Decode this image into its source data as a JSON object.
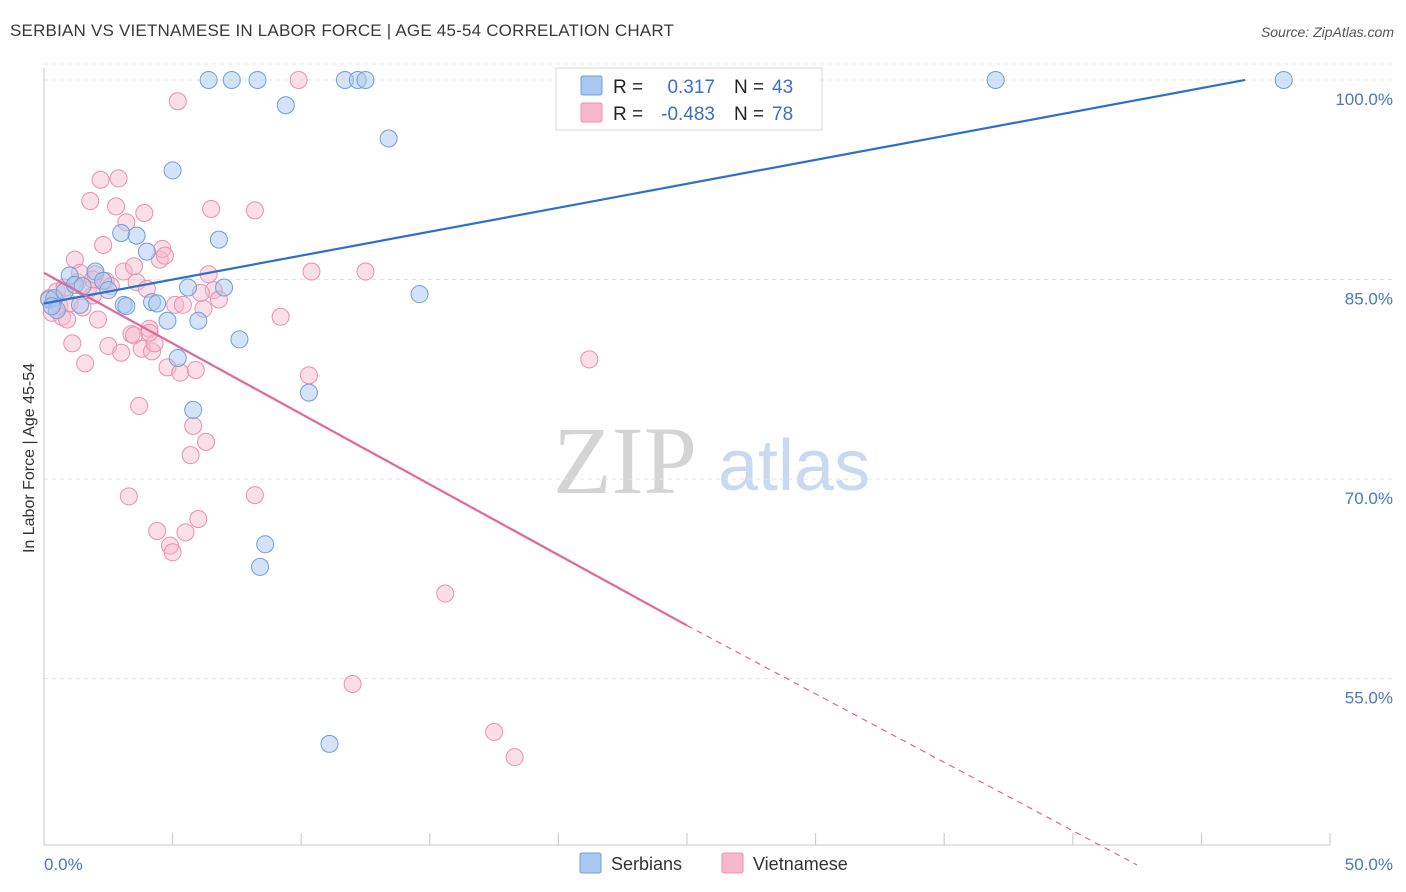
{
  "header": {
    "title": "SERBIAN VS VIETNAMESE IN LABOR FORCE | AGE 45-54 CORRELATION CHART",
    "source": "Source: ZipAtlas.com"
  },
  "watermark": {
    "zip": "ZIP",
    "atlas": "atlas"
  },
  "chart_data": {
    "type": "scatter",
    "title": "SERBIAN VS VIETNAMESE IN LABOR FORCE | AGE 45-54 CORRELATION CHART",
    "xlabel": "",
    "ylabel": "In Labor Force | Age 45-54",
    "xlim": [
      0,
      50
    ],
    "ylim": [
      42.5,
      101.5
    ],
    "x_tick_labels": [
      "0.0%",
      "50.0%"
    ],
    "y_ticks": [
      55,
      70,
      85,
      100
    ],
    "y_tick_labels": [
      "55.0%",
      "70.0%",
      "85.0%",
      "100.0%"
    ],
    "grid": true,
    "legend": {
      "placement": "top-center",
      "entries": [
        {
          "name": "Serbians",
          "r_label": "R =",
          "r_value": "0.317",
          "n_label": "N =",
          "n_value": "43"
        },
        {
          "name": "Vietnamese",
          "r_label": "R =",
          "r_value": "-0.483",
          "n_label": "N =",
          "n_value": "78"
        }
      ]
    },
    "colors": {
      "serbians_fill": "#a9c8f0",
      "serbians_stroke": "#6f9fd8",
      "serbians_line": "#2f6fcc",
      "vietnamese_fill": "#f6b8cc",
      "vietnamese_stroke": "#ec8fad",
      "vietnamese_line": "#e0689a"
    },
    "series": [
      {
        "name": "Serbians",
        "trend": {
          "x": [
            0,
            46.7
          ],
          "y": [
            83.2,
            100.0
          ],
          "dashed_to": null
        },
        "points": [
          [
            0.2,
            83.5
          ],
          [
            0.4,
            83.6
          ],
          [
            0.5,
            82.7
          ],
          [
            0.8,
            84.1
          ],
          [
            1.0,
            85.3
          ],
          [
            1.2,
            84.6
          ],
          [
            1.4,
            83.1
          ],
          [
            2.0,
            85.6
          ],
          [
            2.3,
            84.9
          ],
          [
            2.5,
            84.2
          ],
          [
            3.0,
            88.5
          ],
          [
            3.1,
            83.1
          ],
          [
            3.2,
            83.0
          ],
          [
            3.6,
            88.3
          ],
          [
            4.0,
            87.1
          ],
          [
            4.2,
            83.3
          ],
          [
            4.4,
            83.2
          ],
          [
            4.8,
            81.9
          ],
          [
            5.0,
            93.2
          ],
          [
            5.2,
            79.1
          ],
          [
            5.6,
            84.4
          ],
          [
            5.8,
            75.2
          ],
          [
            6.0,
            81.9
          ],
          [
            6.4,
            100.0
          ],
          [
            6.8,
            88.0
          ],
          [
            7.0,
            84.4
          ],
          [
            7.3,
            100.0
          ],
          [
            7.6,
            80.5
          ],
          [
            8.3,
            100.0
          ],
          [
            8.4,
            63.4
          ],
          [
            8.6,
            65.1
          ],
          [
            9.4,
            98.1
          ],
          [
            10.3,
            76.5
          ],
          [
            11.1,
            50.1
          ],
          [
            11.7,
            100.0
          ],
          [
            12.2,
            100.0
          ],
          [
            12.5,
            100.0
          ],
          [
            13.4,
            95.6
          ],
          [
            14.6,
            83.9
          ],
          [
            37.0,
            100.0
          ],
          [
            48.2,
            100.0
          ],
          [
            0.3,
            83.0
          ],
          [
            1.5,
            84.5
          ]
        ]
      },
      {
        "name": "Vietnamese",
        "trend": {
          "x": [
            0,
            25
          ],
          "y": [
            85.5,
            59.0
          ],
          "dashed_to": [
            42.5,
            41.0
          ]
        },
        "points": [
          [
            0.2,
            83.6
          ],
          [
            0.3,
            82.5
          ],
          [
            0.5,
            84.1
          ],
          [
            0.6,
            83.0
          ],
          [
            0.7,
            82.2
          ],
          [
            0.8,
            84.4
          ],
          [
            1.0,
            83.2
          ],
          [
            1.1,
            80.2
          ],
          [
            1.2,
            86.5
          ],
          [
            1.3,
            84.8
          ],
          [
            1.4,
            85.5
          ],
          [
            1.5,
            82.9
          ],
          [
            1.6,
            78.7
          ],
          [
            1.7,
            84.2
          ],
          [
            1.8,
            90.9
          ],
          [
            1.9,
            83.8
          ],
          [
            2.0,
            85.4
          ],
          [
            2.1,
            82.0
          ],
          [
            2.2,
            92.5
          ],
          [
            2.3,
            87.6
          ],
          [
            2.4,
            84.9
          ],
          [
            2.5,
            80.0
          ],
          [
            2.6,
            84.5
          ],
          [
            2.8,
            90.5
          ],
          [
            2.9,
            92.6
          ],
          [
            3.0,
            79.5
          ],
          [
            3.1,
            85.6
          ],
          [
            3.2,
            89.3
          ],
          [
            3.3,
            68.7
          ],
          [
            3.4,
            80.9
          ],
          [
            3.5,
            80.8
          ],
          [
            3.6,
            84.8
          ],
          [
            3.7,
            75.5
          ],
          [
            3.8,
            79.8
          ],
          [
            3.9,
            90.0
          ],
          [
            4.0,
            84.3
          ],
          [
            4.1,
            81.3
          ],
          [
            4.2,
            79.6
          ],
          [
            4.3,
            80.2
          ],
          [
            4.4,
            66.1
          ],
          [
            4.5,
            86.5
          ],
          [
            4.6,
            87.3
          ],
          [
            4.7,
            86.8
          ],
          [
            4.8,
            78.4
          ],
          [
            4.9,
            65.0
          ],
          [
            5.0,
            64.5
          ],
          [
            5.1,
            83.1
          ],
          [
            5.2,
            98.4
          ],
          [
            5.3,
            78.0
          ],
          [
            5.4,
            83.1
          ],
          [
            5.5,
            66.0
          ],
          [
            5.7,
            71.8
          ],
          [
            5.8,
            74.0
          ],
          [
            5.9,
            78.2
          ],
          [
            6.0,
            67.0
          ],
          [
            6.2,
            82.8
          ],
          [
            6.3,
            72.8
          ],
          [
            6.4,
            85.4
          ],
          [
            6.5,
            90.3
          ],
          [
            6.6,
            84.2
          ],
          [
            6.8,
            83.5
          ],
          [
            8.2,
            68.8
          ],
          [
            8.2,
            90.2
          ],
          [
            9.2,
            82.2
          ],
          [
            9.9,
            100.0
          ],
          [
            10.3,
            77.8
          ],
          [
            10.4,
            85.6
          ],
          [
            12.0,
            54.6
          ],
          [
            12.5,
            85.6
          ],
          [
            15.6,
            61.4
          ],
          [
            17.5,
            51.0
          ],
          [
            18.3,
            49.1
          ],
          [
            21.2,
            79.0
          ],
          [
            0.9,
            82.0
          ],
          [
            1.9,
            85.0
          ],
          [
            3.5,
            86.0
          ],
          [
            4.1,
            81.0
          ],
          [
            6.1,
            84.0
          ]
        ]
      }
    ]
  }
}
